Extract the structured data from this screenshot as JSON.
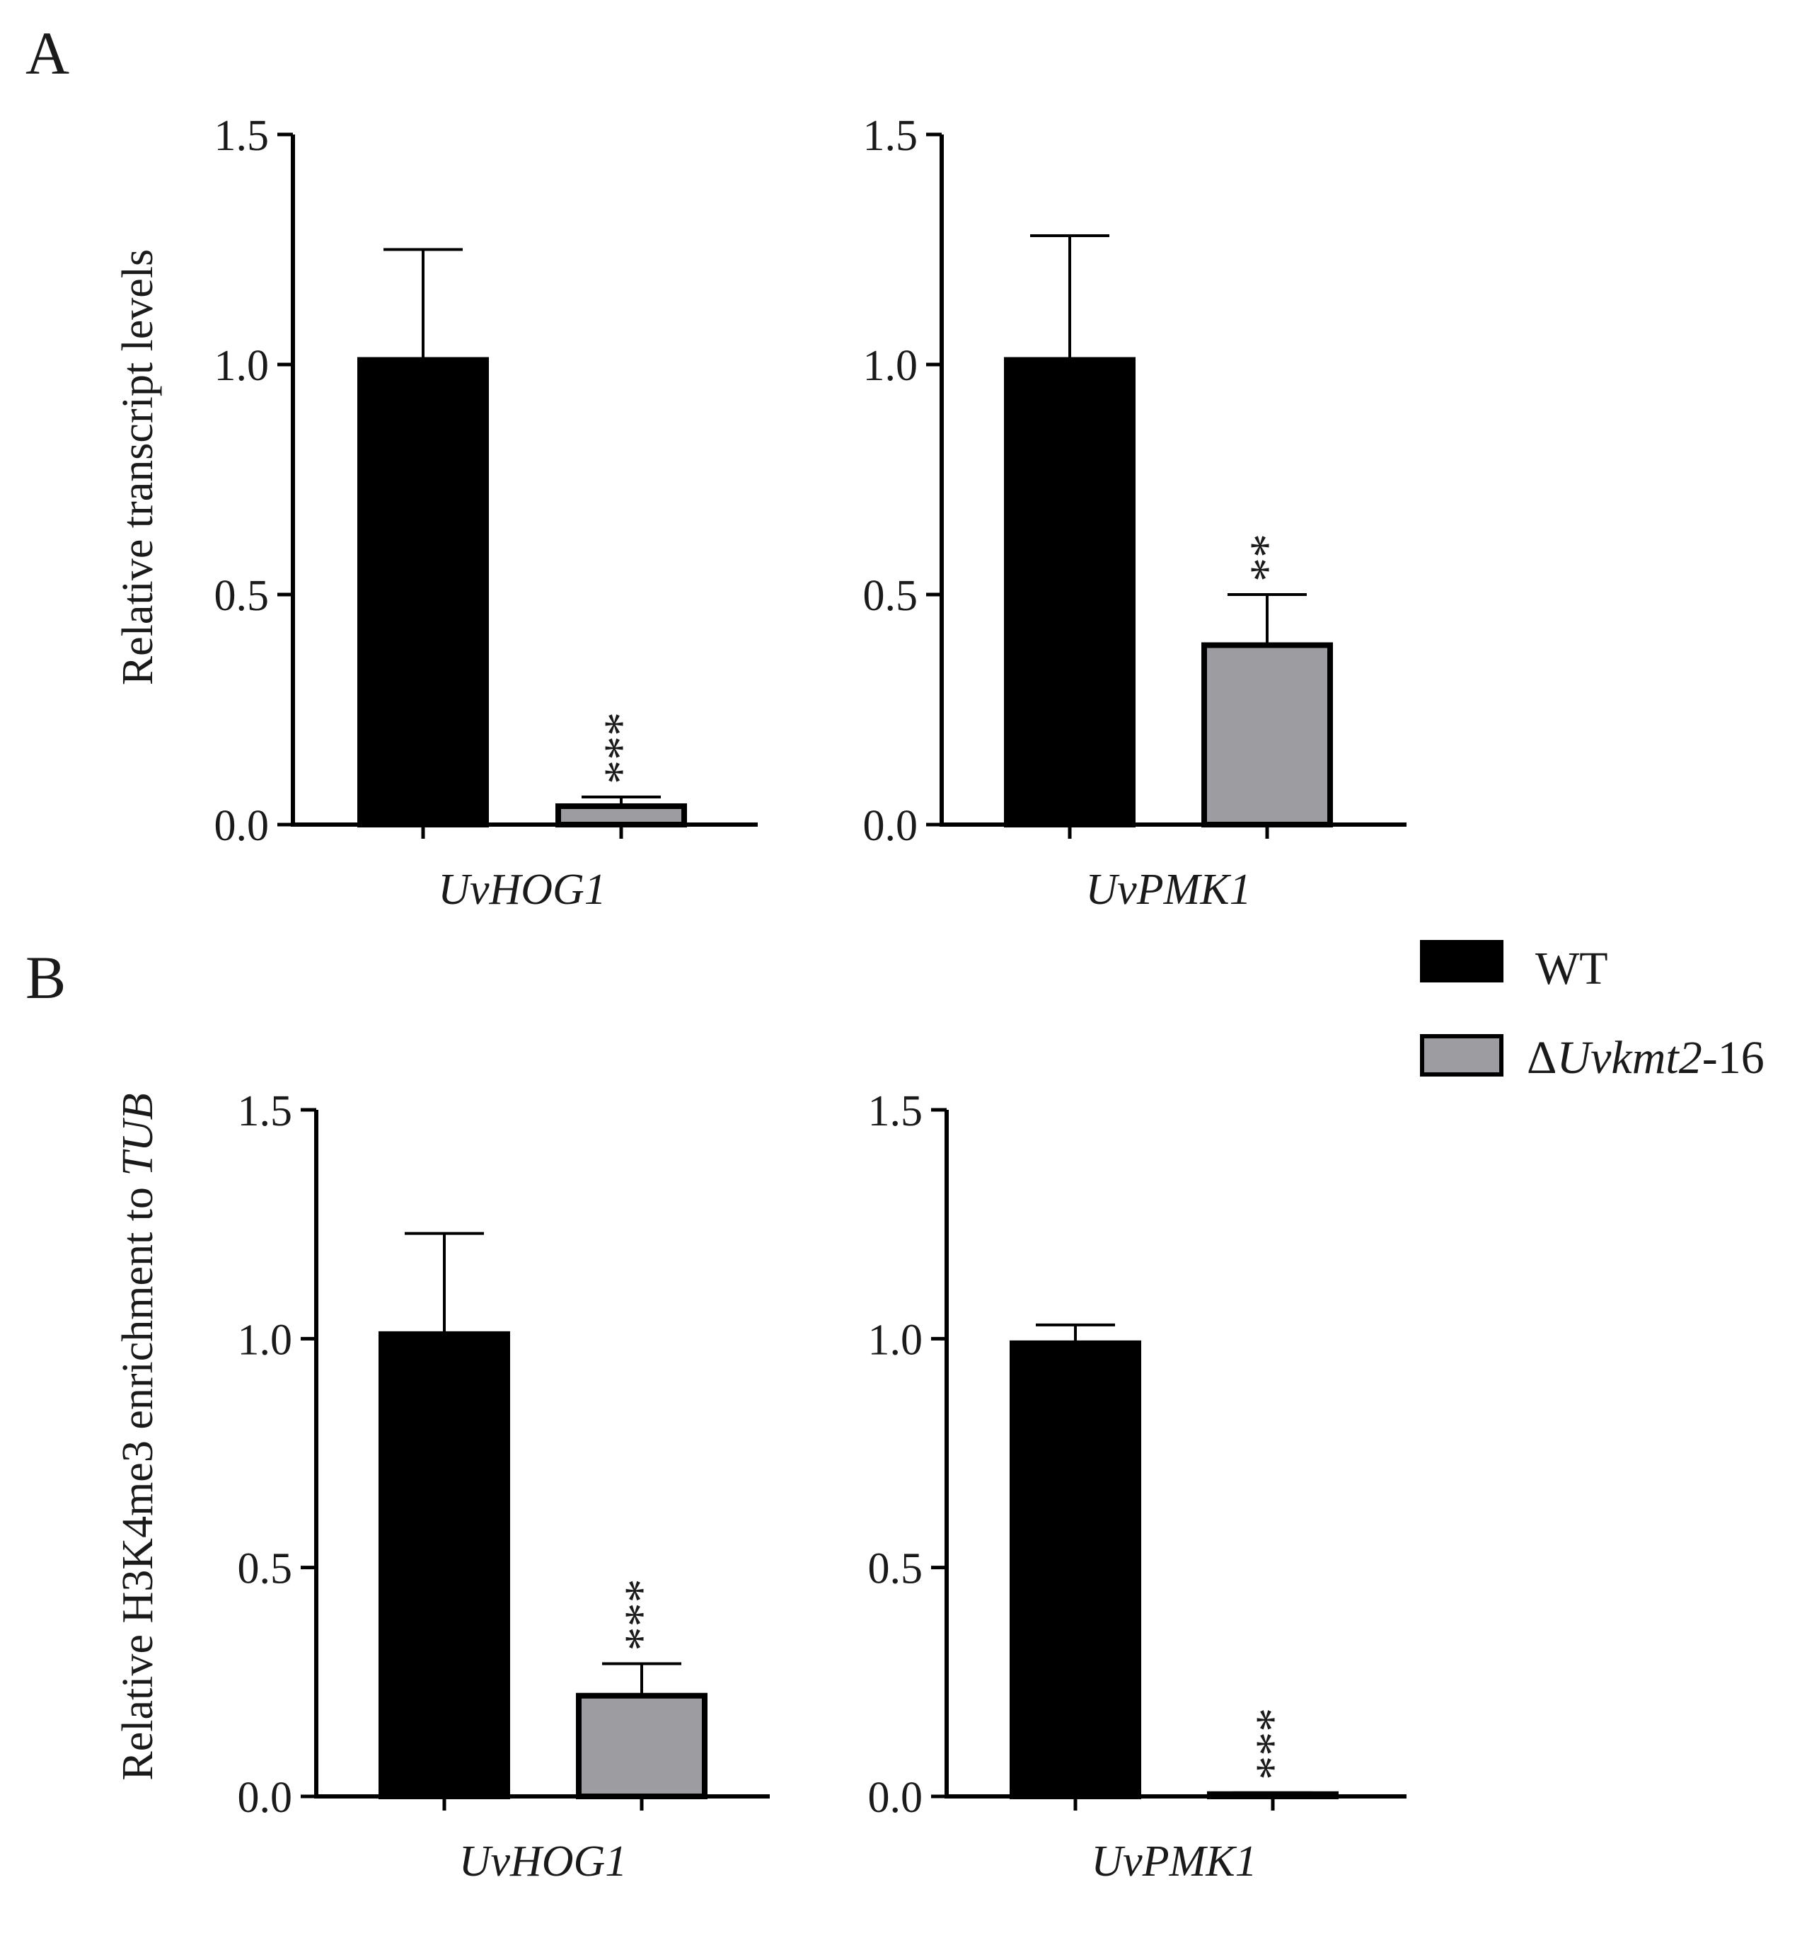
{
  "panels": [
    {
      "letter": "A",
      "ylabel": "Relative transcript levels",
      "charts": [
        0,
        1
      ]
    },
    {
      "letter": "B",
      "ylabel_parts": [
        "Relative H3K4me3 enrichment to ",
        "TUB"
      ],
      "charts": [
        2,
        3
      ]
    }
  ],
  "legend": {
    "items": [
      {
        "name": "WT",
        "color": "#000000",
        "label_parts": [
          {
            "t": "WT",
            "it": false
          }
        ]
      },
      {
        "name": "ΔUvkmt2-16",
        "color": "#9d9da1",
        "label_parts": [
          {
            "t": "Δ",
            "it": false
          },
          {
            "t": "Uvkmt2",
            "it": true
          },
          {
            "t": "-16",
            "it": false
          }
        ]
      }
    ]
  },
  "chart_data": [
    {
      "type": "bar",
      "panel": "A",
      "title": "",
      "xlabel": "UvHOG1",
      "ylabel": "Relative transcript levels",
      "ylim": [
        0,
        1.5
      ],
      "yticks": [
        "0.0",
        "0.5",
        "1.0",
        "1.5"
      ],
      "categories": [
        "WT",
        "ΔUvkmt2-16"
      ],
      "values": [
        1.01,
        0.04
      ],
      "errors": [
        0.24,
        0.02
      ],
      "significance": [
        "",
        "***"
      ]
    },
    {
      "type": "bar",
      "panel": "A",
      "title": "",
      "xlabel": "UvPMK1",
      "ylabel": "",
      "ylim": [
        0,
        1.5
      ],
      "yticks": [
        "0.0",
        "0.5",
        "1.0",
        "1.5"
      ],
      "categories": [
        "WT",
        "ΔUvkmt2-16"
      ],
      "values": [
        1.01,
        0.39
      ],
      "errors": [
        0.27,
        0.11
      ],
      "significance": [
        "",
        "**"
      ]
    },
    {
      "type": "bar",
      "panel": "B",
      "title": "",
      "xlabel": "UvHOG1",
      "ylabel": "Relative H3K4me3 enrichment to TUB",
      "ylim": [
        0,
        1.5
      ],
      "yticks": [
        "0.0",
        "0.5",
        "1.0",
        "1.5"
      ],
      "categories": [
        "WT",
        "ΔUvkmt2-16"
      ],
      "values": [
        1.01,
        0.22
      ],
      "errors": [
        0.22,
        0.07
      ],
      "significance": [
        "",
        "***"
      ]
    },
    {
      "type": "bar",
      "panel": "B",
      "title": "",
      "xlabel": "UvPMK1",
      "ylabel": "",
      "ylim": [
        0,
        1.5
      ],
      "yticks": [
        "0.0",
        "0.5",
        "1.0",
        "1.5"
      ],
      "categories": [
        "WT",
        "ΔUvkmt2-16"
      ],
      "values": [
        0.99,
        0.005
      ],
      "errors": [
        0.04,
        0.003
      ],
      "significance": [
        "",
        "***"
      ]
    }
  ]
}
